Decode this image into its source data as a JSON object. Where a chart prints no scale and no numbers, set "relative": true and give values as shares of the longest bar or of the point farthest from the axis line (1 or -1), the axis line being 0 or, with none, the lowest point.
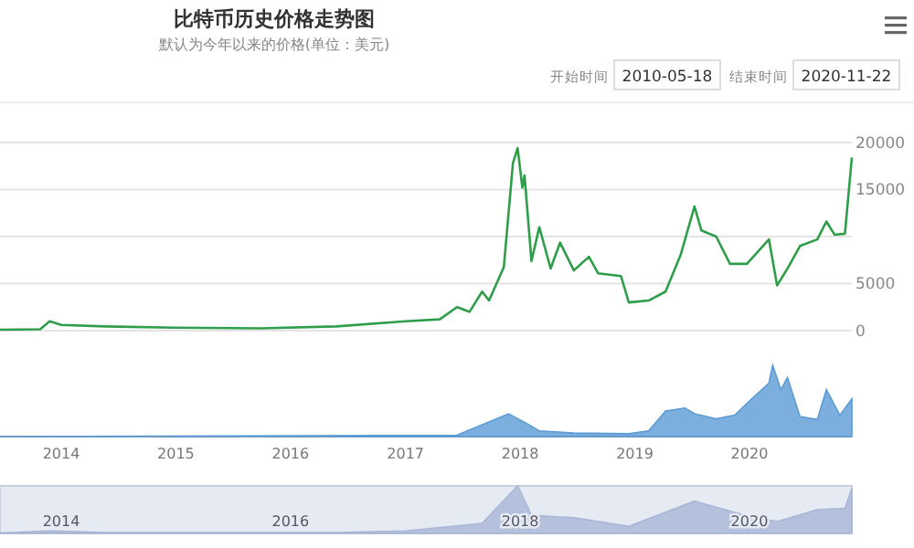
{
  "chart_data": [
    {
      "type": "line",
      "title": "比特币历史价格走势图",
      "subtitle": "默认为今年以来的价格(单位：美元)",
      "annotations": [
        "开始时间",
        "2010-05-18",
        "结束时间",
        "2020-11-22"
      ],
      "xlim": [
        "2013-06-20",
        "2020-11-22"
      ],
      "ylim": [
        0,
        20000
      ],
      "yticks": [
        0,
        5000,
        {
          "value": 10000,
          "label": null
        },
        15000,
        20000
      ],
      "grid": "y",
      "tick_labels": "y",
      "line_style": "solid",
      "marker": "none",
      "series": [
        {
          "color": "#2e9e4a",
          "x": [
            "2013-06-20",
            "2013-10-26",
            "2013-11-25",
            "2014-01-01",
            "2014-05-19",
            "2014-12-24",
            "2015-09-27",
            "2016-05-26",
            "2017-01-01",
            "2017-04-20",
            "2017-06-14",
            "2017-07-24",
            "2017-09-02",
            "2017-09-24",
            "2017-11-10",
            "2017-12-09",
            "2017-12-24",
            "2018-01-08",
            "2018-01-15",
            "2018-02-06",
            "2018-03-03",
            "2018-04-08",
            "2018-05-08",
            "2018-06-21",
            "2018-08-08",
            "2018-09-06",
            "2018-11-18",
            "2018-12-13",
            "2019-02-14",
            "2019-04-09",
            "2019-05-27",
            "2019-07-10",
            "2019-08-01",
            "2019-09-17",
            "2019-10-31",
            "2019-12-24",
            "2020-03-03",
            "2020-03-29",
            "2020-05-01",
            "2020-06-10",
            "2020-08-04",
            "2020-09-02",
            "2020-09-28",
            "2020-10-31",
            "2020-11-22"
          ],
          "values": [
            100,
            150,
            1000,
            600,
            450,
            320,
            250,
            450,
            1000,
            1200,
            2500,
            2000,
            4150,
            3200,
            6750,
            17800,
            19400,
            15200,
            16500,
            7400,
            11000,
            6600,
            9350,
            6400,
            7850,
            6100,
            5800,
            3000,
            3200,
            4150,
            8050,
            13200,
            10650,
            10000,
            7100,
            7100,
            9700,
            4800,
            6600,
            9000,
            9700,
            11600,
            10200,
            10300,
            18400
          ]
        }
      ]
    },
    {
      "type": "area",
      "relative": true,
      "xlim": [
        "2013-06-20",
        "2020-11-22"
      ],
      "xticks": [
        {
          "value": "2014-01-01",
          "label": "2014"
        },
        {
          "value": "2015-01-01",
          "label": "2015"
        },
        {
          "value": "2016-01-01",
          "label": "2016"
        },
        {
          "value": "2017-01-01",
          "label": "2017"
        },
        {
          "value": "2018-01-01",
          "label": "2018"
        },
        {
          "value": "2019-01-01",
          "label": "2019"
        },
        {
          "value": "2020-01-01",
          "label": "2020"
        }
      ],
      "tick_labels": "x",
      "series": [
        {
          "color": "#5b9bd5",
          "x": [
            "2013-06-20",
            "2017-06-14",
            "2017-11-25",
            "2018-01-15",
            "2018-03-03",
            "2018-06-21",
            "2018-12-13",
            "2019-02-14",
            "2019-04-09",
            "2019-06-10",
            "2019-07-10",
            "2019-09-17",
            "2019-11-15",
            "2020-01-01",
            "2020-03-03",
            "2020-03-15",
            "2020-04-10",
            "2020-05-01",
            "2020-06-10",
            "2020-08-04",
            "2020-09-02",
            "2020-10-15",
            "2020-11-22"
          ],
          "values": [
            0,
            0.02,
            0.32,
            0.2,
            0.08,
            0.05,
            0.04,
            0.08,
            0.36,
            0.4,
            0.32,
            0.25,
            0.3,
            0.5,
            0.75,
            1,
            0.66,
            0.83,
            0.28,
            0.24,
            0.66,
            0.3,
            0.53
          ]
        }
      ]
    },
    {
      "type": "area",
      "relative": true,
      "xlim": [
        "2013-06-20",
        "2020-11-22"
      ],
      "xticks": [
        {
          "value": "2014-01-01",
          "label": "2014"
        },
        {
          "value": "2016-01-01",
          "label": "2016"
        },
        {
          "value": "2018-01-01",
          "label": "2018"
        },
        {
          "value": "2020-01-01",
          "label": "2020"
        }
      ],
      "tick_labels": "x",
      "series": [
        {
          "color": "#a9b7d6",
          "x": [
            "2013-06-20",
            "2013-11-25",
            "2014-05-19",
            "2016-05-26",
            "2017-01-01",
            "2017-09-02",
            "2017-12-24",
            "2018-02-06",
            "2018-06-21",
            "2018-12-13",
            "2019-07-10",
            "2019-12-24",
            "2020-03-29",
            "2020-08-04",
            "2020-10-31",
            "2020-11-22"
          ],
          "values": [
            0.01,
            0.05,
            0.02,
            0.02,
            0.05,
            0.21,
            1,
            0.38,
            0.33,
            0.15,
            0.68,
            0.37,
            0.25,
            0.5,
            0.53,
            0.95
          ]
        }
      ]
    }
  ]
}
